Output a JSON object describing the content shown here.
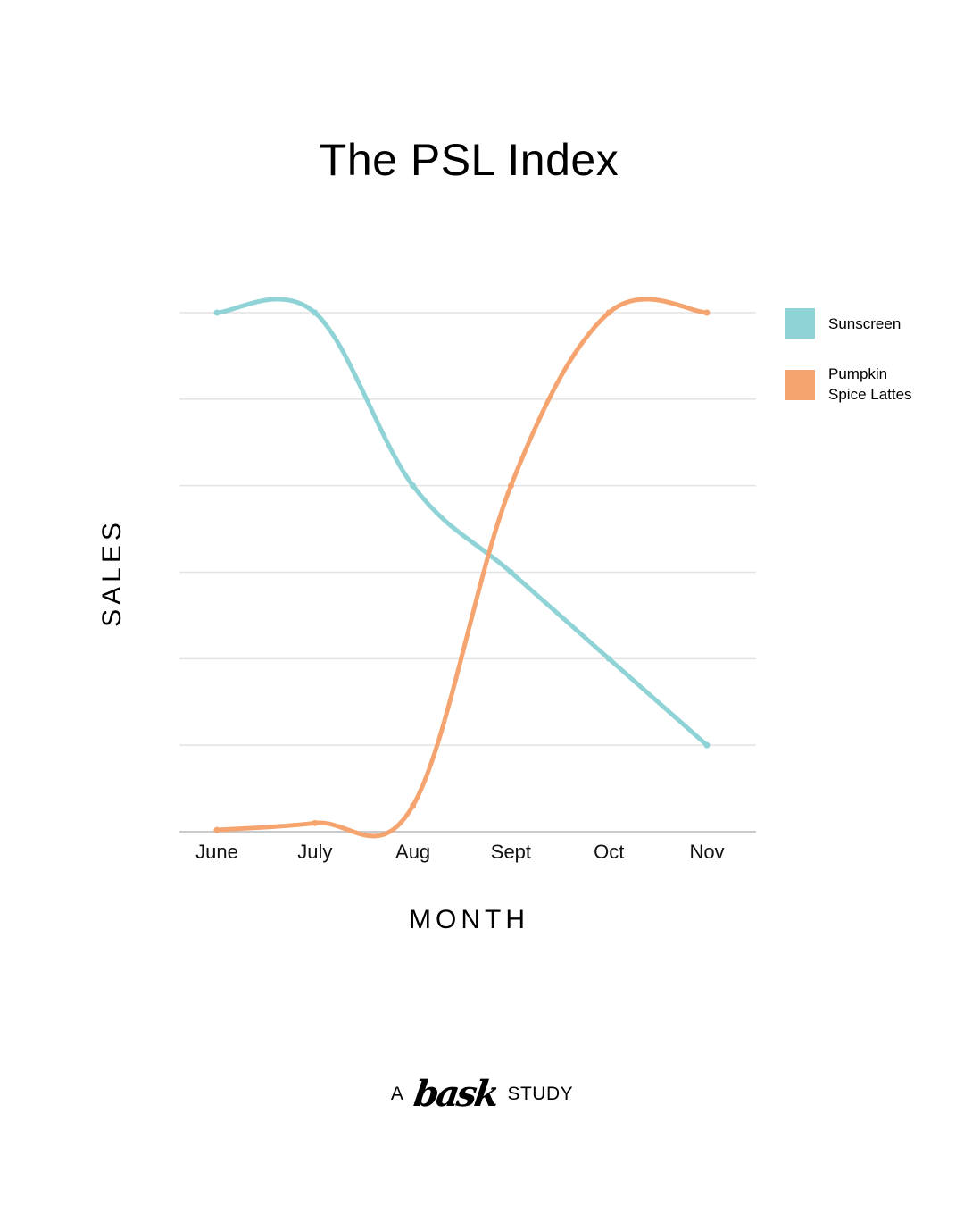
{
  "chart_data": {
    "type": "line",
    "title": "The PSL Index",
    "xlabel": "MONTH",
    "ylabel": "SALES",
    "categories": [
      "June",
      "July",
      "Aug",
      "Sept",
      "Oct",
      "Nov"
    ],
    "ylim": [
      0,
      6
    ],
    "grid": true,
    "legend_position": "right",
    "series": [
      {
        "name": "Sunscreen",
        "color": "#8fd3d7",
        "values": [
          6.0,
          6.0,
          4.0,
          3.0,
          2.0,
          1.0
        ]
      },
      {
        "name": "Pumpkin Spice Lattes",
        "color": "#f6a46f",
        "values": [
          0.02,
          0.1,
          0.3,
          4.0,
          6.0,
          6.0
        ]
      }
    ]
  },
  "legend": {
    "items": [
      {
        "label": "Sunscreen",
        "color": "#8fd3d7"
      },
      {
        "label": "Pumpkin Spice Lattes",
        "color": "#f6a46f"
      }
    ]
  },
  "footer": {
    "prefix": "A",
    "logo": "bask",
    "suffix": "STUDY"
  }
}
